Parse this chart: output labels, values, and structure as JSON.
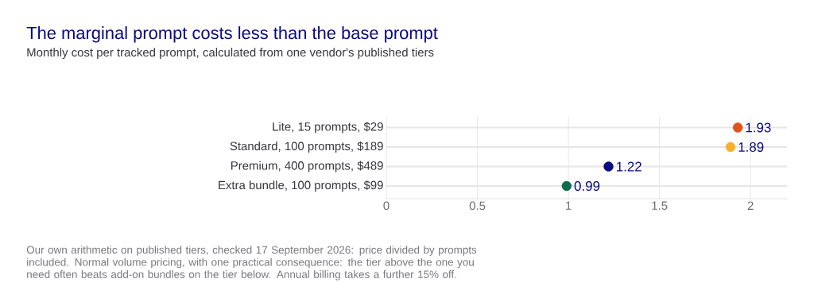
{
  "chart_data": {
    "type": "scatter",
    "orientation": "horizontal",
    "title": "The marginal prompt costs less than the base prompt",
    "subtitle": "Monthly cost per tracked prompt, calculated from one vendor's published tiers",
    "categories": [
      "Lite, 15 prompts, $29",
      "Standard, 100 prompts, $189",
      "Premium, 400 prompts, $489",
      "Extra bundle, 100 prompts, $99"
    ],
    "values": [
      1.93,
      1.89,
      1.22,
      0.99
    ],
    "colors": [
      "#e0531a",
      "#f5b22e",
      "#0b0a7e",
      "#0e6b4f"
    ],
    "xlim": [
      0,
      2.2
    ],
    "xticks": [
      0,
      0.5,
      1,
      1.5,
      2
    ],
    "grid": true,
    "data_labels": true,
    "annotations": [
      "Our own arithmetic on published tiers, checked 17 September 2026: price divided by prompts included. Normal volume pricing, with one practical consequence: the tier above the one you need often beats add-on bundles on the tier below. Annual billing takes a further 15% off."
    ]
  }
}
